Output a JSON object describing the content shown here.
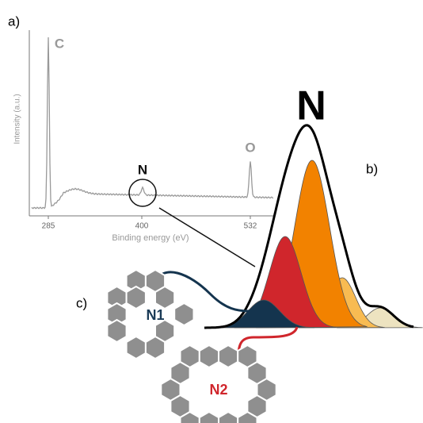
{
  "panel_a": {
    "label": "a)",
    "y_axis_label": "Intensity (a.u.)",
    "x_axis_label": "Binding energy (eV)",
    "ticks": [
      "285",
      "400",
      "532"
    ],
    "peaks": {
      "c": "C",
      "n": "N",
      "o": "O"
    }
  },
  "panel_b": {
    "label": "b)",
    "title": "N"
  },
  "panel_c": {
    "label": "c)",
    "n1": "N1",
    "n2": "N2"
  }
}
